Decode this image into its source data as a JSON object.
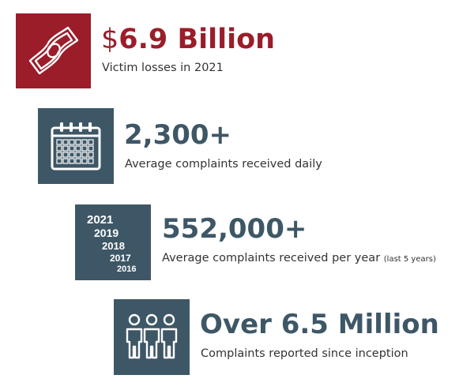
{
  "colors": {
    "red": "#9b1d2a",
    "slate": "#3e5766",
    "text": "#333333"
  },
  "stats": [
    {
      "icon": "money-bill-icon",
      "title_prefix": "$",
      "title": "6.9 Billion",
      "description": "Victim losses in 2021",
      "note": ""
    },
    {
      "icon": "calendar-icon",
      "title_prefix": "",
      "title": "2,300+",
      "description": "Average complaints received daily",
      "note": ""
    },
    {
      "icon": "years-icon",
      "title_prefix": "",
      "title": "552,000+",
      "description": "Average complaints received per year",
      "note": "(last 5 years)"
    },
    {
      "icon": "people-icon",
      "title_prefix": "",
      "title": "Over 6.5 Million",
      "description": "Complaints reported since inception",
      "note": ""
    }
  ],
  "years": [
    "2021",
    "2019",
    "2018",
    "2017",
    "2016"
  ]
}
